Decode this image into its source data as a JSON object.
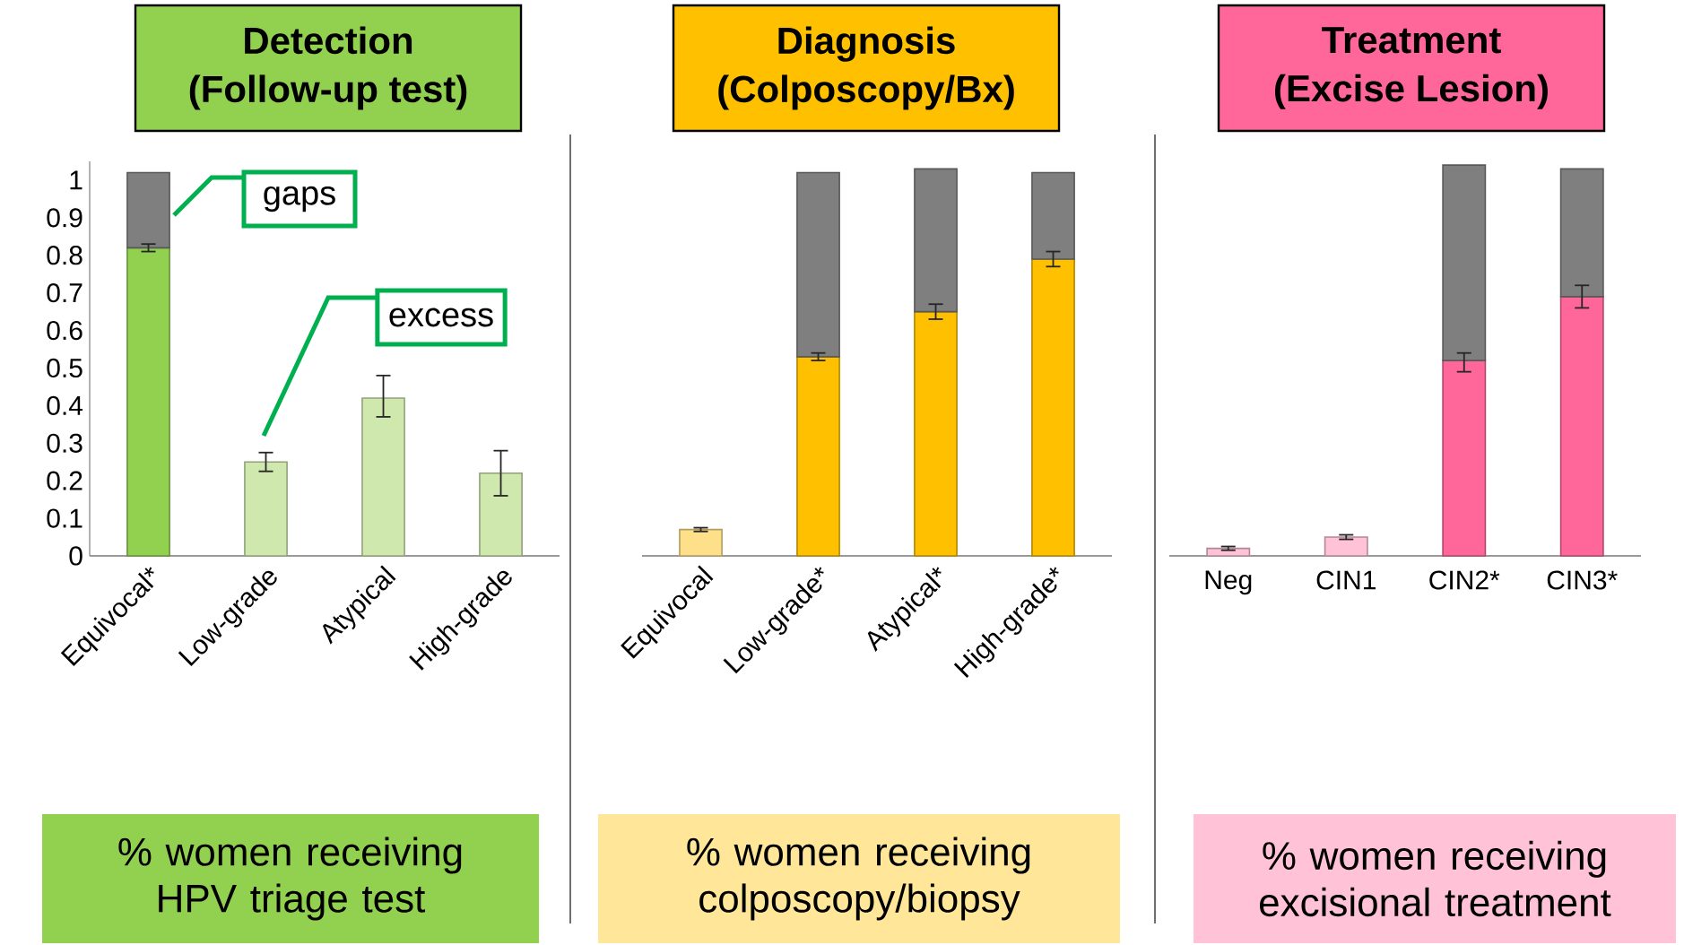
{
  "chart_data": [
    {
      "type": "bar",
      "title": "Detection",
      "subtitle": "(Follow-up test)",
      "categories": [
        "Equivocal*",
        "Low-grade",
        "Atypical",
        "High-grade"
      ],
      "series": [
        {
          "color": "#92d050",
          "colors": [
            "#92d050",
            "#cfe8ae",
            "#cfe8ae",
            "#cfe8ae"
          ],
          "values": [
            0.82,
            0.25,
            0.42,
            0.22
          ],
          "errors": [
            0.01,
            0.025,
            [
              0.37,
              0.48
            ],
            [
              0.16,
              0.28
            ]
          ]
        },
        {
          "color": "#7f7f7f",
          "values": [
            0.2,
            null,
            null,
            null
          ]
        }
      ],
      "stacked": true,
      "ylim": [
        0,
        1.05
      ],
      "yticks": [
        0,
        0.1,
        0.2,
        0.3,
        0.4,
        0.5,
        0.6,
        0.7,
        0.8,
        0.9,
        1
      ],
      "annotations": [
        "gaps",
        "excess",
        "% women receiving HPV triage test"
      ]
    },
    {
      "type": "bar",
      "title": "Diagnosis",
      "subtitle": "(Colposcopy/Bx)",
      "categories": [
        "Equivocal",
        "Low-grade*",
        "Atypical*",
        "High-grade*"
      ],
      "series": [
        {
          "color": "#ffc000",
          "colors": [
            "#ffe08a",
            "#ffc000",
            "#ffc000",
            "#ffc000"
          ],
          "values": [
            0.07,
            0.53,
            0.65,
            0.79
          ],
          "errors": [
            0.005,
            0.01,
            [
              0.63,
              0.67
            ],
            [
              0.77,
              0.81
            ]
          ]
        },
        {
          "color": "#7f7f7f",
          "values": [
            null,
            0.49,
            0.38,
            0.23
          ]
        }
      ],
      "stacked": true,
      "ylim": [
        0,
        1.05
      ],
      "tick_labels": "x",
      "annotations": [
        "% women receiving colposcopy/biopsy"
      ]
    },
    {
      "type": "bar",
      "title": "Treatment",
      "subtitle": "(Excise Lesion)",
      "categories": [
        "Neg",
        "CIN1",
        "CIN2*",
        "CIN3*"
      ],
      "series": [
        {
          "color": "#ff6699",
          "colors": [
            "#ffc2d6",
            "#ffc2d6",
            "#ff6699",
            "#ff6699"
          ],
          "values": [
            0.02,
            0.05,
            0.52,
            0.69
          ],
          "errors": [
            0.005,
            0.006,
            [
              0.49,
              0.54
            ],
            [
              0.66,
              0.72
            ]
          ]
        },
        {
          "color": "#7f7f7f",
          "values": [
            null,
            null,
            0.52,
            0.34
          ]
        }
      ],
      "stacked": true,
      "ylim": [
        0,
        1.05
      ],
      "tick_labels": "x",
      "annotations": [
        "% women receiving excisional treatment"
      ]
    }
  ]
}
